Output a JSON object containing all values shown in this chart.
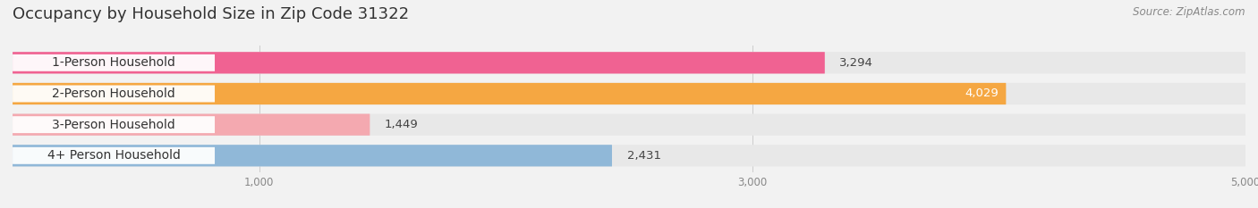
{
  "title": "Occupancy by Household Size in Zip Code 31322",
  "source": "Source: ZipAtlas.com",
  "categories": [
    "1-Person Household",
    "2-Person Household",
    "3-Person Household",
    "4+ Person Household"
  ],
  "values": [
    3294,
    4029,
    1449,
    2431
  ],
  "bar_colors": [
    "#f06292",
    "#f5a742",
    "#f4a9b0",
    "#90b8d8"
  ],
  "value_inside": [
    false,
    true,
    false,
    false
  ],
  "xlim": [
    0,
    5000
  ],
  "xticks": [
    1000,
    3000,
    5000
  ],
  "bg_color": "#f2f2f2",
  "row_bg_color": "#e8e8e8",
  "label_box_color": "#ffffff",
  "title_fontsize": 13,
  "source_fontsize": 8.5,
  "label_fontsize": 10,
  "value_fontsize": 9.5
}
